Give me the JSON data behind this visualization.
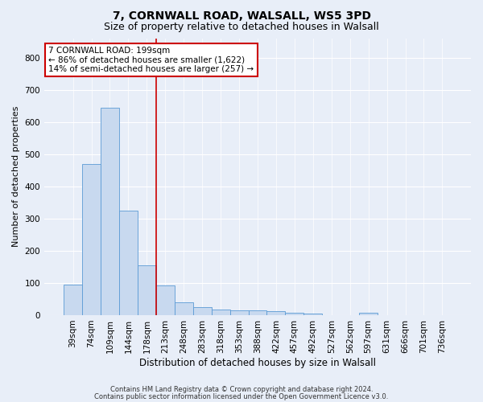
{
  "title1": "7, CORNWALL ROAD, WALSALL, WS5 3PD",
  "title2": "Size of property relative to detached houses in Walsall",
  "xlabel": "Distribution of detached houses by size in Walsall",
  "ylabel": "Number of detached properties",
  "footer1": "Contains HM Land Registry data © Crown copyright and database right 2024.",
  "footer2": "Contains public sector information licensed under the Open Government Licence v3.0.",
  "bin_labels": [
    "39sqm",
    "74sqm",
    "109sqm",
    "144sqm",
    "178sqm",
    "213sqm",
    "248sqm",
    "283sqm",
    "318sqm",
    "353sqm",
    "388sqm",
    "422sqm",
    "457sqm",
    "492sqm",
    "527sqm",
    "562sqm",
    "597sqm",
    "631sqm",
    "666sqm",
    "701sqm",
    "736sqm"
  ],
  "bar_heights": [
    95,
    470,
    645,
    325,
    155,
    92,
    40,
    25,
    18,
    15,
    15,
    12,
    8,
    6,
    0,
    0,
    7,
    0,
    0,
    0,
    0
  ],
  "bar_color": "#c8d9ef",
  "bar_edge_color": "#5b9bd5",
  "red_line_x": 4.5,
  "red_line_color": "#cc0000",
  "annotation_line1": "7 CORNWALL ROAD: 199sqm",
  "annotation_line2": "← 86% of detached houses are smaller (1,622)",
  "annotation_line3": "14% of semi-detached houses are larger (257) →",
  "annotation_box_color": "#ffffff",
  "annotation_box_edge": "#cc0000",
  "ylim": [
    0,
    860
  ],
  "yticks": [
    0,
    100,
    200,
    300,
    400,
    500,
    600,
    700,
    800
  ],
  "background_color": "#e8eef8",
  "plot_bg_color": "#e8eef8",
  "grid_color": "#ffffff",
  "title1_fontsize": 10,
  "title2_fontsize": 9,
  "ylabel_fontsize": 8,
  "xlabel_fontsize": 8.5,
  "tick_fontsize": 7.5,
  "annot_fontsize": 7.5,
  "footer_fontsize": 6
}
